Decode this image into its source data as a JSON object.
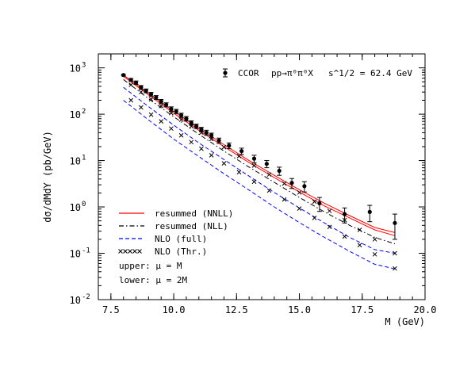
{
  "chart_data": {
    "type": "line",
    "header": {
      "experiment": "CCOR",
      "process": "pp→π⁰π⁰X",
      "energy": "s^1/2 = 62.4 GeV"
    },
    "xlabel": "M (GeV)",
    "ylabel": "dσ/dMdY (pb/GeV)",
    "xlim": [
      7.0,
      20.0
    ],
    "ylim": [
      0.01,
      2000
    ],
    "yscale": "log",
    "x_ticks": [
      {
        "v": 7.5,
        "label": "7.5"
      },
      {
        "v": 10.0,
        "label": "10.0"
      },
      {
        "v": 12.5,
        "label": "12.5"
      },
      {
        "v": 15.0,
        "label": "15.0"
      },
      {
        "v": 17.5,
        "label": "17.5"
      },
      {
        "v": 20.0,
        "label": "20.0"
      }
    ],
    "y_ticks": [
      {
        "v": 0.01,
        "base": "10",
        "exp": "-2"
      },
      {
        "v": 0.1,
        "base": "10",
        "exp": "-1"
      },
      {
        "v": 1,
        "base": "10",
        "exp": "0"
      },
      {
        "v": 10,
        "base": "10",
        "exp": "1"
      },
      {
        "v": 100,
        "base": "10",
        "exp": "2"
      },
      {
        "v": 1000,
        "base": "10",
        "exp": "3"
      }
    ],
    "legend": {
      "position": "bottom-left",
      "entries": [
        {
          "label": "resummed (NNLL)",
          "style": "solid",
          "color": "#ff0000"
        },
        {
          "label": "resummed (NLL)",
          "style": "dashdot",
          "color": "#000000"
        },
        {
          "label": "NLO (full)",
          "style": "dashed",
          "color": "#0000ff"
        },
        {
          "label": "NLO (Thr.)",
          "style": "crosses",
          "color": "#000000"
        }
      ]
    },
    "notes": [
      "upper: μ = M",
      "lower: μ = 2M"
    ],
    "data_points": {
      "name": "CCOR",
      "points": [
        {
          "x": 8.0,
          "y": 700,
          "err": 30
        },
        {
          "x": 8.3,
          "y": 550,
          "err": 40
        },
        {
          "x": 8.5,
          "y": 480,
          "err": 40
        },
        {
          "x": 8.7,
          "y": 380,
          "err": 35
        },
        {
          "x": 8.9,
          "y": 320,
          "err": 30
        },
        {
          "x": 9.1,
          "y": 270,
          "err": 25
        },
        {
          "x": 9.3,
          "y": 230,
          "err": 22
        },
        {
          "x": 9.5,
          "y": 190,
          "err": 18
        },
        {
          "x": 9.7,
          "y": 160,
          "err": 16
        },
        {
          "x": 9.9,
          "y": 130,
          "err": 14
        },
        {
          "x": 10.1,
          "y": 115,
          "err": 12
        },
        {
          "x": 10.3,
          "y": 95,
          "err": 10
        },
        {
          "x": 10.5,
          "y": 80,
          "err": 9
        },
        {
          "x": 10.7,
          "y": 65,
          "err": 7
        },
        {
          "x": 10.9,
          "y": 55,
          "err": 6
        },
        {
          "x": 11.1,
          "y": 47,
          "err": 5
        },
        {
          "x": 11.3,
          "y": 40,
          "err": 5
        },
        {
          "x": 11.5,
          "y": 35,
          "err": 4
        },
        {
          "x": 11.8,
          "y": 27,
          "err": 3.5
        },
        {
          "x": 12.2,
          "y": 21,
          "err": 3
        },
        {
          "x": 12.7,
          "y": 16,
          "err": 2.5
        },
        {
          "x": 13.2,
          "y": 11,
          "err": 2
        },
        {
          "x": 13.7,
          "y": 8.5,
          "err": 1.5
        },
        {
          "x": 14.2,
          "y": 6,
          "err": 1.2
        },
        {
          "x": 14.7,
          "y": 3.3,
          "err": 0.8
        },
        {
          "x": 15.2,
          "y": 2.8,
          "err": 0.7
        },
        {
          "x": 15.8,
          "y": 1.2,
          "err": 0.4
        },
        {
          "x": 16.8,
          "y": 0.7,
          "err": 0.25
        },
        {
          "x": 17.8,
          "y": 0.78,
          "err": 0.3
        },
        {
          "x": 18.8,
          "y": 0.45,
          "err": 0.25
        }
      ]
    },
    "series": [
      {
        "label": "resummed (NNLL)",
        "line": "solid",
        "color": "#ff0000",
        "x": [
          8.0,
          9.0,
          10.0,
          11.0,
          12.0,
          13.0,
          14.0,
          15.0,
          16.0,
          17.0,
          18.0,
          18.8
        ],
        "y": [
          700,
          280,
          115,
          50,
          22,
          10,
          4.8,
          2.35,
          1.2,
          0.65,
          0.36,
          0.28
        ]
      },
      {
        "label": "resummed (NNLL)",
        "line": "solid",
        "color": "#ff0000",
        "x": [
          8.0,
          9.0,
          10.0,
          11.0,
          12.0,
          13.0,
          14.0,
          15.0,
          16.0,
          17.0,
          18.0,
          18.8
        ],
        "y": [
          660,
          260,
          105,
          45,
          20,
          9,
          4.3,
          2.1,
          1.05,
          0.58,
          0.32,
          0.24
        ]
      },
      {
        "label": "resummed (NLL)",
        "line": "dashdot",
        "color": "#000000",
        "x": [
          8.0,
          9.0,
          10.0,
          11.0,
          12.0,
          13.0,
          14.0,
          15.0,
          16.0,
          17.0,
          18.0,
          18.8
        ],
        "y": [
          560,
          215,
          88,
          37,
          16,
          7.2,
          3.4,
          1.6,
          0.78,
          0.4,
          0.22,
          0.16
        ]
      },
      {
        "label": "NLO (full)",
        "line": "dashed",
        "color": "#0000ff",
        "x": [
          8.0,
          9.0,
          10.0,
          11.0,
          12.0,
          13.0,
          14.0,
          15.0,
          16.0,
          17.0,
          18.0,
          18.8
        ],
        "y": [
          380,
          145,
          58,
          24,
          10.5,
          4.6,
          2.05,
          0.95,
          0.45,
          0.22,
          0.12,
          0.1
        ]
      },
      {
        "label": "NLO (full)",
        "line": "dashed",
        "color": "#0000ff",
        "x": [
          8.0,
          9.0,
          10.0,
          11.0,
          12.0,
          13.0,
          14.0,
          15.0,
          16.0,
          17.0,
          18.0,
          18.8
        ],
        "y": [
          200,
          75,
          29,
          12.2,
          5.2,
          2.3,
          1.0,
          0.46,
          0.22,
          0.11,
          0.058,
          0.046
        ]
      },
      {
        "label": "NLO (Thr.)",
        "line": "crosses",
        "color": "#000000",
        "x": [
          8.3,
          8.7,
          9.1,
          9.5,
          9.9,
          10.3,
          10.7,
          11.1,
          11.5,
          12.0,
          12.6,
          13.2,
          13.8,
          14.4,
          15.0,
          15.6,
          16.2,
          16.8,
          17.4,
          18.0,
          18.8
        ],
        "y": [
          430,
          300,
          210,
          150,
          106,
          76,
          55,
          40,
          29,
          19.5,
          12.5,
          7.8,
          5.0,
          3.2,
          2.05,
          1.3,
          0.82,
          0.52,
          0.32,
          0.2,
          0.1
        ]
      },
      {
        "label": "NLO (Thr.)",
        "line": "crosses",
        "color": "#000000",
        "x": [
          8.3,
          8.7,
          9.1,
          9.5,
          9.9,
          10.3,
          10.7,
          11.1,
          11.5,
          12.0,
          12.6,
          13.2,
          13.8,
          14.4,
          15.0,
          15.6,
          16.2,
          16.8,
          17.4,
          18.0,
          18.8
        ],
        "y": [
          200,
          140,
          98,
          70,
          49,
          35,
          25,
          18,
          13,
          8.7,
          5.6,
          3.5,
          2.25,
          1.45,
          0.92,
          0.58,
          0.37,
          0.23,
          0.15,
          0.095,
          0.047
        ]
      }
    ]
  }
}
